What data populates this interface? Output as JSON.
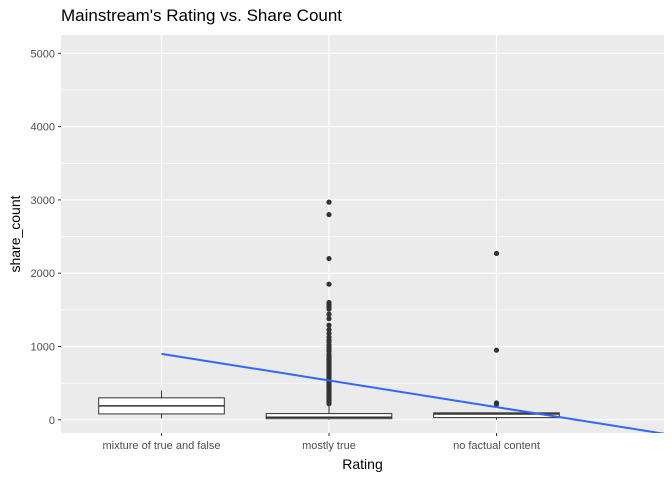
{
  "chart_data": {
    "type": "box",
    "title": "Mainstream's Rating vs. Share Count",
    "xlabel": "Rating",
    "ylabel": "share_count",
    "categories": [
      "mixture of true and false",
      "mostly true",
      "no factual content"
    ],
    "ylim": [
      -180,
      5250
    ],
    "yticks": [
      0,
      1000,
      2000,
      3000,
      4000,
      5000
    ],
    "grid": true,
    "boxes": [
      {
        "category": "mixture of true and false",
        "min": 20,
        "q1": 80,
        "median": 190,
        "q3": 300,
        "max": 400,
        "outliers": []
      },
      {
        "category": "mostly true",
        "min": 0,
        "q1": 15,
        "median": 35,
        "q3": 85,
        "max": 200,
        "outliers": [
          2970,
          2800,
          2200,
          1850,
          1600,
          1570,
          1540,
          1510,
          1440,
          1380,
          1290,
          1230,
          1180,
          1130,
          1090,
          1060,
          1020,
          990,
          960,
          930,
          890,
          860,
          840,
          820,
          800,
          780,
          760,
          740,
          720,
          700,
          680,
          660,
          640,
          620,
          600,
          580,
          560,
          540,
          520,
          500,
          480,
          460,
          440,
          420,
          400,
          380,
          360,
          340,
          320,
          300,
          280,
          260,
          240,
          220
        ]
      },
      {
        "category": "no factual content",
        "min": 0,
        "q1": 30,
        "median": 80,
        "q3": 95,
        "max": 100,
        "outliers": [
          2270,
          950,
          230,
          210
        ]
      }
    ],
    "trend_line": {
      "x": [
        1,
        4
      ],
      "y": [
        900,
        -190
      ]
    },
    "colors": {
      "panel": "#EBEBEB",
      "grid": "#FFFFFF",
      "trend": "#3366FF",
      "points": "#333333"
    }
  }
}
